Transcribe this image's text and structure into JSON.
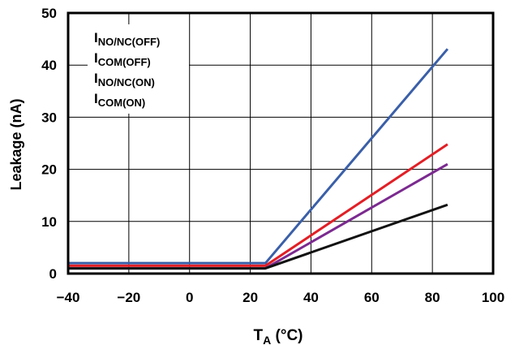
{
  "chart_data": {
    "type": "line",
    "xlabel": {
      "main": "T",
      "sub": "A",
      "suffix": " (°C)"
    },
    "ylabel": "Leakage (nA)",
    "xlim": [
      -40,
      100
    ],
    "ylim": [
      0,
      50
    ],
    "xticks": [
      -40,
      -20,
      0,
      20,
      40,
      60,
      80,
      100
    ],
    "yticks": [
      0,
      10,
      20,
      30,
      40,
      50
    ],
    "xtick_labels": [
      "−40",
      "−20",
      "0",
      "20",
      "40",
      "60",
      "80",
      "100"
    ],
    "ytick_labels": [
      "0",
      "10",
      "20",
      "30",
      "40",
      "50"
    ],
    "grid": true,
    "legend_position": "top-left",
    "series": [
      {
        "name": {
          "main": "I",
          "sub": "NO/NC(OFF)"
        },
        "color": "#3a5fa8",
        "x": [
          -40,
          25,
          85
        ],
        "y": [
          2.0,
          2.0,
          43.1
        ]
      },
      {
        "name": {
          "main": "I",
          "sub": "COM(OFF)"
        },
        "color": "#e11f26",
        "x": [
          -40,
          25,
          85
        ],
        "y": [
          1.5,
          1.5,
          24.8
        ]
      },
      {
        "name": {
          "main": "I",
          "sub": "NO/NC(ON)"
        },
        "color": "#7b2a8f",
        "x": [
          -40,
          25,
          85
        ],
        "y": [
          1.0,
          1.0,
          21.0
        ]
      },
      {
        "name": {
          "main": "I",
          "sub": "COM(ON)"
        },
        "color": "#111111",
        "x": [
          -40,
          25,
          85
        ],
        "y": [
          1.0,
          1.0,
          13.2
        ]
      }
    ]
  }
}
